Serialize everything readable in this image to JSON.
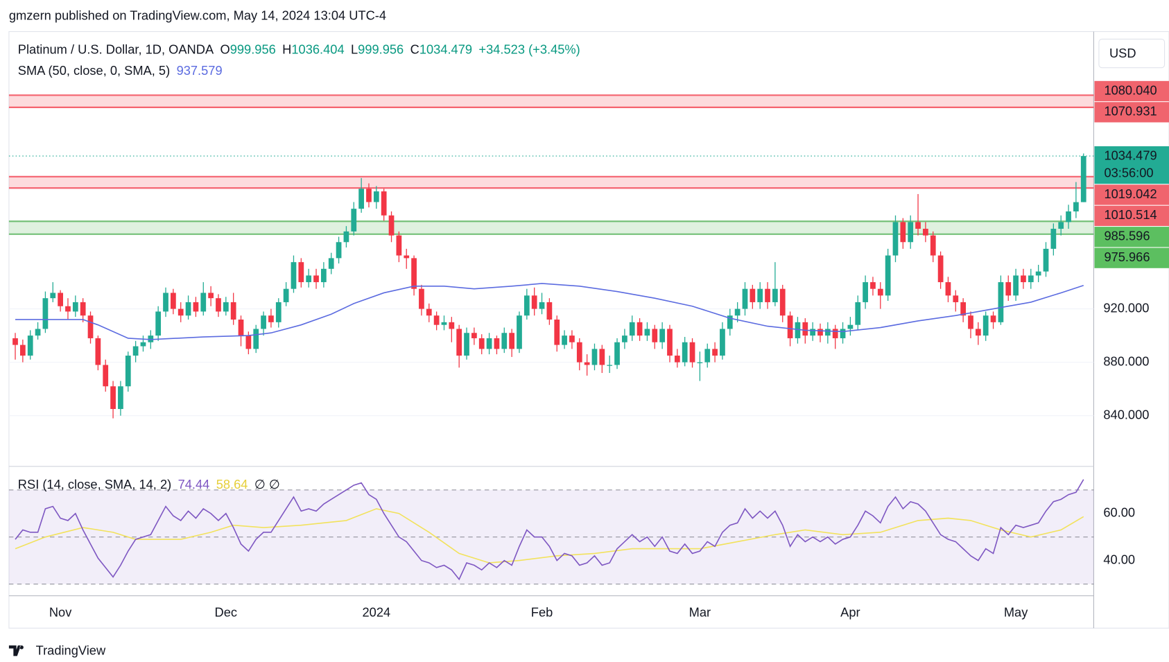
{
  "header": "gmzern published on TradingView.com, May 14, 2024 13:04 UTC-4",
  "footer": "TradingView",
  "chart_data": {
    "type": "candlestick",
    "title": "Platinum / U.S. Dollar, 1D, OANDA",
    "ohlc_letters": [
      "O",
      "H",
      "L",
      "C"
    ],
    "change": "+34.523 (+3.45%)",
    "currency": "USD",
    "countdown": "03:56:00",
    "up_color": "#22ab94",
    "down_color": "#f23645",
    "open": [
      898,
      893,
      885,
      900,
      905,
      928,
      932,
      922,
      918,
      925,
      915,
      898,
      878,
      862,
      845,
      862,
      885,
      892,
      895,
      900,
      918,
      932,
      920,
      915,
      925,
      918,
      932,
      928,
      918,
      925,
      912,
      900,
      890,
      905,
      915,
      910,
      925,
      935,
      955,
      940,
      945,
      940,
      950,
      958,
      970,
      978,
      995,
      1010,
      1000,
      1008,
      990,
      975,
      960,
      958,
      935,
      920,
      915,
      908,
      910,
      905,
      885,
      902,
      898,
      890,
      898,
      890,
      902,
      890,
      915,
      930,
      920,
      925,
      912,
      893,
      900,
      895,
      880,
      878,
      890,
      878,
      878,
      895,
      900,
      910,
      900,
      905,
      895,
      905,
      885,
      880,
      895,
      880,
      880,
      890,
      885,
      905,
      915,
      920,
      935,
      925,
      935,
      925,
      935,
      915,
      898,
      910,
      900,
      905,
      900,
      905,
      898,
      905,
      908,
      925,
      940,
      935,
      930,
      960,
      985,
      970,
      985,
      980,
      975,
      960,
      940,
      930,
      925,
      915,
      905,
      900,
      915,
      910,
      940,
      930,
      945,
      940,
      945,
      948,
      965,
      980,
      985,
      993,
      999.956
    ],
    "high": [
      902,
      897,
      904,
      910,
      933,
      940,
      934,
      928,
      930,
      928,
      918,
      900,
      882,
      866,
      866,
      888,
      896,
      900,
      904,
      922,
      936,
      935,
      925,
      930,
      929,
      940,
      937,
      931,
      929,
      932,
      915,
      903,
      908,
      918,
      920,
      928,
      940,
      960,
      958,
      950,
      950,
      955,
      962,
      974,
      982,
      1000,
      1018,
      1014,
      1012,
      1010,
      993,
      978,
      965,
      960,
      938,
      924,
      918,
      915,
      914,
      908,
      906,
      906,
      901,
      902,
      900,
      906,
      905,
      918,
      935,
      936,
      932,
      928,
      915,
      904,
      904,
      898,
      886,
      894,
      893,
      885,
      898,
      905,
      915,
      913,
      910,
      908,
      910,
      908,
      890,
      899,
      898,
      888,
      894,
      895,
      910,
      920,
      925,
      940,
      938,
      940,
      940,
      955,
      938,
      918,
      914,
      913,
      910,
      909,
      910,
      908,
      910,
      914,
      930,
      945,
      944,
      940,
      965,
      990,
      988,
      990,
      1006,
      985,
      978,
      963,
      944,
      934,
      928,
      918,
      910,
      918,
      918,
      945,
      945,
      950,
      950,
      950,
      953,
      970,
      984,
      990,
      998,
      1015,
      1036.404
    ],
    "low": [
      882,
      880,
      882,
      897,
      902,
      925,
      918,
      912,
      914,
      910,
      894,
      874,
      858,
      838,
      840,
      858,
      880,
      888,
      890,
      896,
      914,
      916,
      910,
      912,
      914,
      915,
      922,
      914,
      915,
      908,
      892,
      886,
      887,
      900,
      906,
      906,
      922,
      932,
      936,
      936,
      935,
      936,
      946,
      954,
      966,
      975,
      992,
      996,
      995,
      986,
      970,
      955,
      950,
      930,
      915,
      910,
      904,
      904,
      895,
      876,
      882,
      893,
      886,
      886,
      886,
      887,
      884,
      887,
      912,
      915,
      916,
      908,
      888,
      890,
      890,
      874,
      870,
      874,
      872,
      872,
      875,
      890,
      896,
      896,
      896,
      890,
      890,
      880,
      876,
      877,
      876,
      866,
      876,
      880,
      882,
      900,
      910,
      915,
      920,
      920,
      920,
      922,
      910,
      892,
      894,
      894,
      896,
      895,
      894,
      890,
      894,
      900,
      904,
      920,
      930,
      920,
      926,
      955,
      965,
      965,
      975,
      970,
      955,
      935,
      925,
      918,
      910,
      898,
      893,
      896,
      905,
      908,
      926,
      926,
      935,
      935,
      940,
      944,
      960,
      975,
      980,
      988,
      999.956
    ],
    "close": [
      893,
      885,
      900,
      905,
      928,
      932,
      922,
      918,
      925,
      915,
      898,
      878,
      862,
      845,
      862,
      885,
      892,
      895,
      900,
      918,
      932,
      920,
      915,
      925,
      918,
      932,
      928,
      918,
      925,
      912,
      900,
      890,
      905,
      915,
      910,
      925,
      935,
      955,
      940,
      945,
      940,
      950,
      958,
      970,
      978,
      995,
      1010,
      1000,
      1008,
      990,
      975,
      960,
      958,
      935,
      920,
      915,
      908,
      910,
      905,
      885,
      902,
      898,
      890,
      898,
      890,
      902,
      890,
      915,
      930,
      920,
      925,
      912,
      893,
      900,
      895,
      880,
      878,
      890,
      878,
      878,
      895,
      900,
      910,
      900,
      905,
      895,
      905,
      885,
      880,
      895,
      880,
      880,
      890,
      885,
      905,
      915,
      920,
      935,
      925,
      935,
      925,
      935,
      915,
      898,
      910,
      900,
      905,
      900,
      905,
      898,
      905,
      908,
      925,
      940,
      935,
      930,
      960,
      985,
      970,
      985,
      980,
      975,
      960,
      940,
      930,
      925,
      915,
      905,
      900,
      915,
      910,
      940,
      930,
      945,
      940,
      945,
      948,
      965,
      980,
      985,
      993,
      999.956,
      1034.479
    ],
    "xlim": [
      -0.84,
      143.35
    ],
    "xticks": [
      {
        "value": 6,
        "label": "Nov"
      },
      {
        "value": 28,
        "label": "Dec"
      },
      {
        "value": 48,
        "label": "2024"
      },
      {
        "value": 70,
        "label": "Feb"
      },
      {
        "value": 91,
        "label": "Mar"
      },
      {
        "value": 111,
        "label": "Apr"
      },
      {
        "value": 133,
        "label": "May"
      }
    ],
    "ylim": [
      802,
      1126
    ],
    "yticks": [
      {
        "value": 840,
        "label": "840.000"
      },
      {
        "value": 880,
        "label": "880.000"
      },
      {
        "value": 920,
        "label": "920.000"
      }
    ],
    "grid": true,
    "zones": [
      {
        "top": {
          "value": 1080.04,
          "label": "1080.040"
        },
        "bottom": {
          "value": 1070.931,
          "label": "1070.931"
        },
        "color": "#f23645",
        "label_color": "#f0646d"
      },
      {
        "top": {
          "value": 1019.042,
          "label": "1019.042"
        },
        "bottom": {
          "value": 1010.514,
          "label": "1010.514"
        },
        "color": "#f23645",
        "label_color": "#f0646d"
      },
      {
        "top": {
          "value": 985.596,
          "label": "985.596"
        },
        "bottom": {
          "value": 975.966,
          "label": "975.966"
        },
        "color": "#4caf50",
        "label_color": "#5cbf60"
      }
    ],
    "sma": {
      "name": "SMA (50, close, 0, SMA, 5)",
      "color": "#5b6be0",
      "x": [
        0,
        9,
        11,
        15,
        18,
        25,
        31,
        34,
        38,
        42,
        45,
        49,
        53,
        57,
        61,
        66,
        70,
        75,
        80,
        85,
        90,
        95,
        100,
        105,
        110,
        115,
        120,
        125,
        130,
        135,
        139,
        142
      ],
      "values": [
        912,
        912,
        908,
        898,
        897,
        899,
        900,
        902,
        908,
        916,
        924,
        932,
        937,
        937,
        935,
        937,
        939,
        937,
        933,
        928,
        922,
        913,
        907,
        904,
        903,
        906,
        911,
        915,
        920,
        925,
        932,
        937.579
      ]
    },
    "rsi": {
      "name": "RSI (14, close, SMA, 14, 2)",
      "color": "#7e57c2",
      "values": [
        49,
        53,
        52,
        52,
        62,
        63,
        58,
        57,
        60,
        53,
        47,
        41,
        37,
        33,
        38,
        44,
        49,
        50,
        51,
        57,
        63,
        59,
        57,
        61,
        58,
        62,
        60,
        57,
        60,
        54,
        47,
        44,
        49,
        52,
        52,
        57,
        62,
        67,
        61,
        62,
        61,
        64,
        66,
        68,
        70,
        72,
        73,
        68,
        66,
        60,
        55,
        50,
        48,
        44,
        40,
        39,
        37,
        38,
        36,
        32,
        39,
        38,
        36,
        39,
        37,
        40,
        38,
        46,
        53,
        50,
        50,
        46,
        40,
        43,
        42,
        38,
        39,
        42,
        38,
        39,
        45,
        48,
        51,
        48,
        50,
        46,
        50,
        44,
        43,
        47,
        43,
        44,
        48,
        46,
        52,
        55,
        56,
        62,
        58,
        61,
        58,
        61,
        55,
        46,
        51,
        48,
        50,
        48,
        50,
        47,
        49,
        50,
        55,
        61,
        59,
        56,
        63,
        67,
        62,
        65,
        64,
        61,
        56,
        51,
        49,
        48,
        45,
        42,
        40,
        45,
        43,
        54,
        51,
        55,
        54,
        55,
        56,
        61,
        65,
        66,
        68,
        69,
        74.44
      ],
      "ma": {
        "color": "#f2e25c",
        "x": [
          0,
          4,
          9,
          13,
          16,
          22,
          26,
          29,
          33,
          38,
          44,
          48,
          51,
          55,
          59,
          63,
          67,
          72,
          77,
          82,
          87,
          91,
          96,
          101,
          105,
          110,
          115,
          120,
          124,
          127,
          131,
          135,
          139,
          142
        ],
        "values": [
          45,
          50,
          54,
          52,
          49,
          49,
          52,
          55,
          54,
          55,
          57,
          62,
          60,
          52,
          43,
          39,
          40,
          42,
          43,
          45,
          45,
          45,
          48,
          51,
          53,
          51,
          52,
          57,
          58,
          57,
          53,
          50,
          53,
          58.64
        ]
      },
      "empty_marks": "∅ ∅",
      "ylim": [
        25,
        80
      ],
      "yticks": [
        {
          "value": 40,
          "label": "40.00"
        },
        {
          "value": 60,
          "label": "60.00"
        }
      ],
      "levels": [
        30,
        50,
        70
      ]
    }
  }
}
